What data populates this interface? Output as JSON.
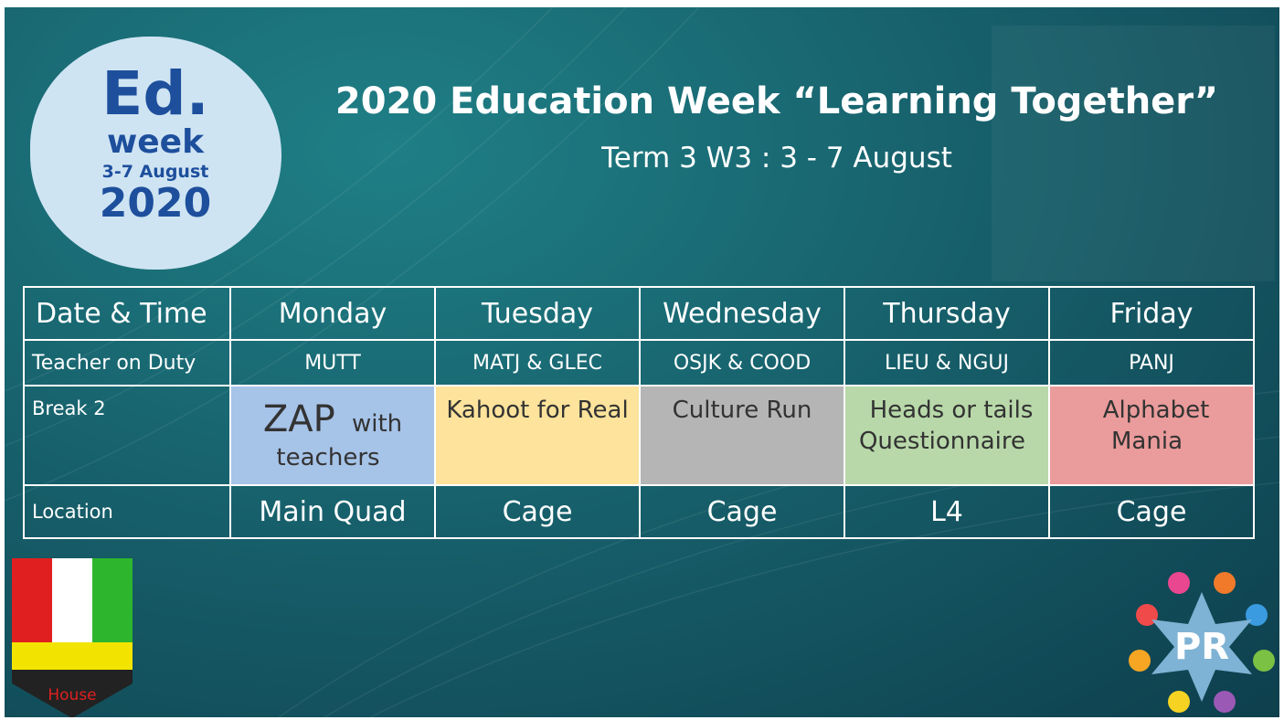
{
  "logo": {
    "line1": "Ed.",
    "line2": "week",
    "dates": "3-7 August",
    "year": "2020"
  },
  "header": {
    "title": "2020 Education Week “Learning Together”",
    "subtitle": "Term 3 W3 : 3 - 7 August"
  },
  "table": {
    "columns": [
      "Date & Time",
      "Monday",
      "Tuesday",
      "Wednesday",
      "Thursday",
      "Friday"
    ],
    "rows": [
      {
        "label": "Teacher on Duty",
        "cells": [
          {
            "text": "MUTT"
          },
          {
            "text": "MATJ & GLEC"
          },
          {
            "text": "OSJK & COOD"
          },
          {
            "text": "LIEU & NGUJ"
          },
          {
            "text": "PANJ"
          }
        ]
      },
      {
        "label": "Break 2",
        "cells": [
          {
            "emphasis": "ZAP",
            "text": "with teachers",
            "color": "#a6c3e8"
          },
          {
            "text": "Kahoot for Real",
            "color": "#fde39b"
          },
          {
            "text": "Culture Run",
            "color": "#b5b5b5"
          },
          {
            "text": "Heads or tails Questionnaire",
            "color": "#b8d8a9"
          },
          {
            "text": "Alphabet Mania",
            "color": "#ea9b9b"
          }
        ]
      },
      {
        "label": "Location",
        "cells": [
          {
            "text": "Main Quad"
          },
          {
            "text": "Cage"
          },
          {
            "text": "Cage"
          },
          {
            "text": "L4"
          },
          {
            "text": "Cage"
          }
        ]
      }
    ]
  },
  "badges": {
    "house": "House",
    "pr": "PR"
  }
}
